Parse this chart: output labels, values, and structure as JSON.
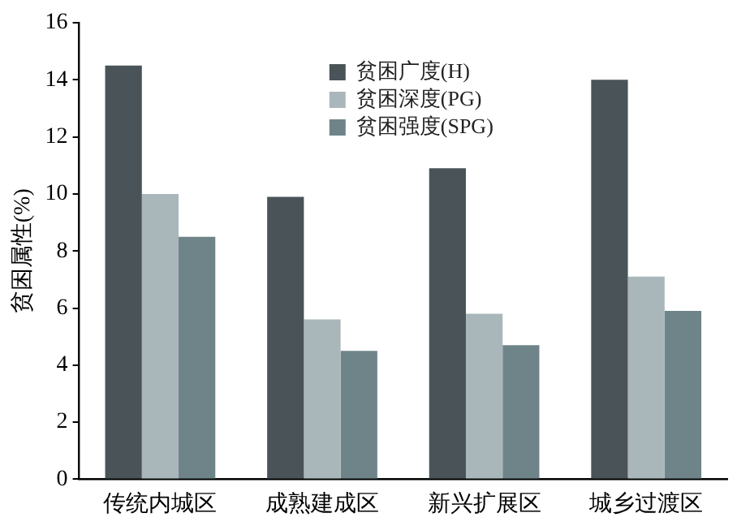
{
  "chart_data": {
    "type": "bar",
    "ylabel": "贫困属性(%)",
    "categories": [
      "传统内城区",
      "成熟建成区",
      "新兴扩展区",
      "城乡过渡区"
    ],
    "series": [
      {
        "name": "贫困广度(H)",
        "color": "#4a5458",
        "values": [
          14.5,
          9.9,
          10.9,
          14.0
        ]
      },
      {
        "name": "贫困深度(PG)",
        "color": "#a9b7bb",
        "values": [
          10.0,
          5.6,
          5.8,
          7.1
        ]
      },
      {
        "name": "贫困强度(SPG)",
        "color": "#6e8489",
        "values": [
          8.5,
          4.5,
          4.7,
          5.9
        ]
      }
    ],
    "ylim": [
      0,
      16
    ],
    "yticks": [
      0,
      2,
      4,
      6,
      8,
      10,
      12,
      14,
      16
    ],
    "grid": false,
    "legend": "top"
  }
}
